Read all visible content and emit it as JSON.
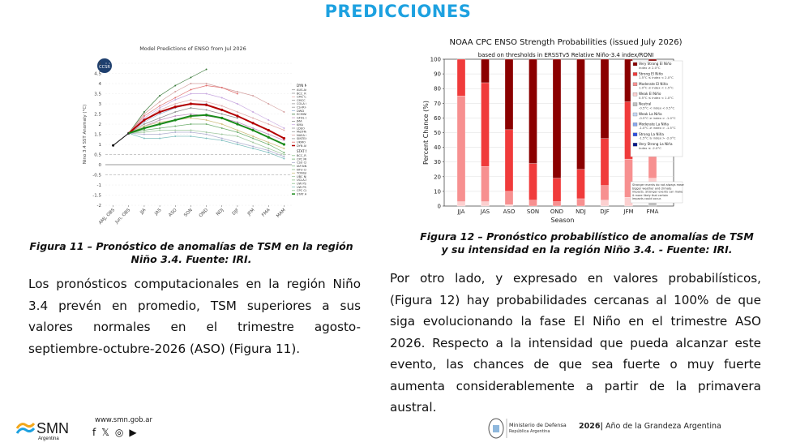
{
  "header": {
    "title": "PREDICCIONES"
  },
  "figure11": {
    "caption": "Figura 11 – Pronóstico de anomalías de TSM en la región Niño 3.4. Fuente: IRI.",
    "caption_lines": [
      "Figura 11 – Pronóstico de anomalías de TSM en la región",
      "Niño 3.4. Fuente: IRI."
    ]
  },
  "figure12": {
    "caption_lines": [
      "Figura 12 – Pronóstico probabilístico de anomalías de TSM",
      "y su intensidad en la región Niño 3.4. - Fuente: IRI."
    ]
  },
  "chart_data": [
    {
      "type": "line",
      "title": "Model Predictions of ENSO from Jul 2026",
      "ylabel": "Nino 3.4 SST Anomaly (°C)",
      "ylim": [
        -2,
        5
      ],
      "x": [
        "AMJ, OBS",
        "Jun, OBS",
        "JJA",
        "JAS",
        "ASO",
        "SON",
        "OND",
        "NDJ",
        "DJF",
        "JFM",
        "FMA",
        "MAM"
      ],
      "yticks": [
        "-2",
        "-1.5",
        "-1",
        "-0.5",
        "0",
        "0.5",
        "1",
        "1.5",
        "2",
        "2.5",
        "3",
        "3.5",
        "4",
        "4.5",
        "5"
      ],
      "legend_title_dyn": "DYN MODELS",
      "legend_title_stat": "STAT MODELS",
      "legend_dyn": [
        "AUS-ACCESS",
        "BCC_RMP",
        "CMC CANSIP",
        "CMCC SPS",
        "COLA CCSM4",
        "CS-IRI-MM",
        "DWD",
        "ECMWF",
        "GFDL SPEAR",
        "JMA",
        "KMA",
        "LDEO",
        "MetFRANCE",
        "NASA GMAO",
        "SINTEX-F",
        "UKMO",
        "DYN AVG"
      ],
      "legend_stat": [
        "BCC_RZDM",
        "CPC MRKOV",
        "CSU CLIPR",
        "IAP-NN",
        "NTU CODA",
        "TONGJI-ML",
        "UBC NNET",
        "UCLA-TCD",
        "UW PSL-CSLIM",
        "UW PSL-LIM",
        "CPC CA",
        "STAT AVG"
      ],
      "observed": [
        0.95,
        1.55
      ],
      "series": [
        {
          "name": "DYN AVG",
          "color": "#b30000",
          "width": 2,
          "values": [
            null,
            1.55,
            2.2,
            2.6,
            2.85,
            3.0,
            2.95,
            2.7,
            2.4,
            2.05,
            1.7,
            1.3
          ]
        },
        {
          "name": "STAT AVG",
          "color": "#1a8a1a",
          "width": 2,
          "values": [
            null,
            1.55,
            1.8,
            2.0,
            2.2,
            2.4,
            2.45,
            2.3,
            2.0,
            1.7,
            1.35,
            1.0
          ]
        },
        {
          "name": "ECMWF",
          "color": "#3a7a3a",
          "width": 0.7,
          "values": [
            null,
            1.55,
            2.6,
            3.4,
            3.9,
            4.3,
            4.7,
            null,
            null,
            null,
            null,
            null
          ]
        },
        {
          "name": "NASA GMAO",
          "color": "#d4a0a0",
          "width": 0.7,
          "values": [
            null,
            1.55,
            2.5,
            3.1,
            3.6,
            4.0,
            4.0,
            3.8,
            3.6,
            3.4,
            3.0,
            2.6
          ]
        },
        {
          "name": "UKMO",
          "color": "#e07070",
          "width": 0.7,
          "values": [
            null,
            1.55,
            2.4,
            2.9,
            3.3,
            3.7,
            3.9,
            3.8,
            3.5,
            null,
            null,
            null
          ]
        },
        {
          "name": "KMA",
          "color": "#c8a8e0",
          "width": 0.7,
          "values": [
            null,
            1.55,
            2.3,
            2.8,
            3.2,
            3.5,
            3.5,
            3.3,
            3.0,
            2.6,
            2.2,
            1.8
          ]
        },
        {
          "name": "CMC CANSIP",
          "color": "#e0b0b0",
          "width": 0.7,
          "values": [
            null,
            1.55,
            2.2,
            2.7,
            3.0,
            3.2,
            3.1,
            2.9,
            2.6,
            2.3,
            2.0,
            1.7
          ]
        },
        {
          "name": "DWD",
          "color": "#a0b8d8",
          "width": 0.7,
          "values": [
            null,
            1.55,
            2.1,
            2.5,
            2.8,
            3.0,
            3.0,
            null,
            null,
            null,
            null,
            null
          ]
        },
        {
          "name": "JMA",
          "color": "#909090",
          "width": 0.7,
          "values": [
            null,
            1.55,
            2.0,
            2.3,
            2.6,
            2.8,
            2.7,
            2.5,
            2.3,
            null,
            null,
            null
          ]
        },
        {
          "name": "GFDL SPEAR",
          "color": "#c090c0",
          "width": 0.7,
          "values": [
            null,
            1.55,
            1.9,
            2.2,
            2.4,
            2.5,
            2.4,
            2.3,
            2.1,
            1.8,
            1.5,
            1.2
          ]
        },
        {
          "name": "CPC MRKOV",
          "color": "#70b070",
          "width": 0.7,
          "values": [
            null,
            1.55,
            1.7,
            1.8,
            1.9,
            2.0,
            2.0,
            1.8,
            1.6,
            1.3,
            1.0,
            0.6
          ]
        },
        {
          "name": "UBC NNET",
          "color": "#a0c8a0",
          "width": 0.7,
          "values": [
            null,
            1.55,
            1.6,
            1.7,
            1.7,
            1.7,
            1.6,
            1.5,
            1.4,
            1.1,
            0.8,
            0.5
          ]
        },
        {
          "name": "CSU CLIPR",
          "color": "#b0b0d0",
          "width": 0.7,
          "values": [
            null,
            1.55,
            1.5,
            1.5,
            1.6,
            1.6,
            1.5,
            1.3,
            1.1,
            0.9,
            0.7,
            0.4
          ]
        },
        {
          "name": "UW PSL-LIM",
          "color": "#80c0c0",
          "width": 0.7,
          "values": [
            null,
            1.55,
            1.3,
            1.3,
            1.4,
            1.4,
            1.3,
            1.2,
            1.0,
            0.8,
            0.6,
            0.3
          ]
        },
        {
          "name": "TONGJI-ML",
          "color": "#d0c080",
          "width": 0.7,
          "values": [
            null,
            1.55,
            1.9,
            2.1,
            2.2,
            2.3,
            2.2,
            2.0,
            1.7,
            1.4,
            1.1,
            0.8
          ]
        }
      ]
    },
    {
      "type": "bar",
      "stacked": true,
      "title": "NOAA CPC ENSO Strength Probabilities (issued July 2026)",
      "subtitle": "based on thresholds in ERSSTv5 Relative Niño-3.4 index/RONI",
      "xlabel": "Season",
      "ylabel": "Percent Chance (%)",
      "ylim": [
        0,
        100
      ],
      "yticks": [
        "0",
        "10",
        "20",
        "30",
        "40",
        "50",
        "60",
        "70",
        "80",
        "90",
        "100"
      ],
      "categories": [
        "JJA",
        "JAS",
        "ASO",
        "SON",
        "OND",
        "NDJ",
        "DJF",
        "JFM",
        "FMA"
      ],
      "series": [
        {
          "name": "Very Strong El Niño",
          "range": "index ≥ 2.0°C",
          "color": "#8b0000",
          "values": [
            0,
            16,
            48,
            71,
            81,
            75,
            54,
            29,
            10
          ]
        },
        {
          "name": "Strong El Niño",
          "range": "1.5°C ≤ index < 2.0°C",
          "color": "#f03b3b",
          "values": [
            25,
            57,
            42,
            25,
            16,
            20,
            32,
            39,
            29
          ]
        },
        {
          "name": "Moderate El Niño",
          "range": "1.0°C ≤ index < 1.5°C",
          "color": "#f79090",
          "values": [
            72,
            24,
            9,
            4,
            3,
            5,
            10,
            26,
            42
          ]
        },
        {
          "name": "Weak El Niño",
          "range": "0.5°C ≤ index < 1.0°C",
          "color": "#fcd0d0",
          "values": [
            3,
            3,
            1,
            0,
            0,
            0,
            4,
            6,
            16
          ]
        },
        {
          "name": "Neutral",
          "range": "-0.5°C < index < 0.5°C",
          "color": "#c0c0c0",
          "values": [
            0,
            0,
            0,
            0,
            0,
            0,
            0,
            0,
            3
          ]
        },
        {
          "name": "Weak La Niña",
          "range": "-0.5°C ≥ index > -1.0°C",
          "color": "#c6d8f5",
          "values": [
            0,
            0,
            0,
            0,
            0,
            0,
            0,
            0,
            0
          ]
        },
        {
          "name": "Moderate La Niña",
          "range": "-1.0°C ≥ index > -1.5°C",
          "color": "#8aa8f0",
          "values": [
            0,
            0,
            0,
            0,
            0,
            0,
            0,
            0,
            0
          ]
        },
        {
          "name": "Strong La Niña",
          "range": "-1.5°C ≥ index > -2.0°C",
          "color": "#3050e0",
          "values": [
            0,
            0,
            0,
            0,
            0,
            0,
            0,
            0,
            0
          ]
        },
        {
          "name": "Very Strong La Niña",
          "range": "index ≤ -2.0°C",
          "color": "#0a1a8a",
          "values": [
            0,
            0,
            0,
            0,
            0,
            0,
            0,
            0,
            0
          ]
        }
      ],
      "note": "Stronger events do not always mean bigger weather and climate impacts. Stronger events can make it more likely that certain impacts could occur."
    }
  ],
  "paragraph1": {
    "lines": [
      "Los pronósticos computacionales en la región Niño",
      "3.4 prevén en promedio, TSM superiores a sus",
      "valores normales en el trimestre agosto-",
      "septiembre-octubre-2026 (ASO) (Figura 11)."
    ]
  },
  "paragraph2": {
    "lines": [
      "Por otro lado, y expresado en valores probabilísticos,",
      "(Figura 12) hay probabilidades cercanas al 100% de que",
      "siga evolucionando la fase El Niño en el trimestre ASO",
      "2026. Respecto a la intensidad que pueda alcanzar este",
      "evento, las chances de que sea fuerte o muy fuerte",
      "aumenta considerablemente a partir de la primavera",
      "austral."
    ]
  },
  "footer": {
    "logo_text": "SMN",
    "logo_sub": "Argentina",
    "website": "www.smn.gob.ar",
    "social": [
      "f",
      "𝕏",
      "◎",
      "▶"
    ],
    "ministry": "Ministerio de Defensa",
    "ministry_sub": "República Argentina",
    "year": "2026",
    "year_motto": "Año de la Grandeza Argentina",
    "brand_color": "#1da1e0"
  }
}
